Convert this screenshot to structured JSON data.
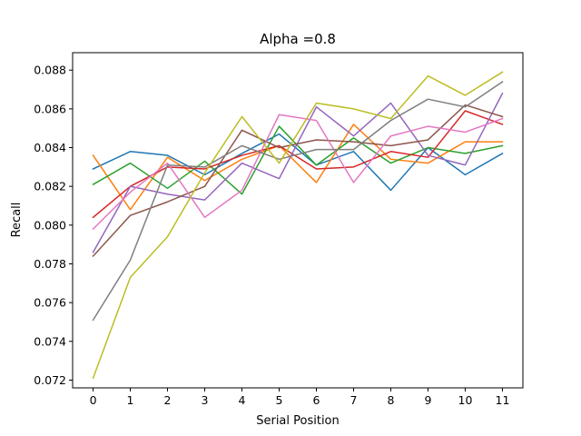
{
  "chart_data": {
    "type": "line",
    "title": "Alpha =0.8",
    "xlabel": "Serial Position",
    "ylabel": "Recall",
    "x": [
      0,
      1,
      2,
      3,
      4,
      5,
      6,
      7,
      8,
      9,
      10,
      11
    ],
    "xlim": [
      -0.55,
      11.55
    ],
    "ylim": [
      0.0716,
      0.0889
    ],
    "yticks": [
      0.072,
      0.074,
      0.076,
      0.078,
      0.08,
      0.082,
      0.084,
      0.086,
      0.088
    ],
    "ytick_labels": [
      "0.072",
      "0.074",
      "0.076",
      "0.078",
      "0.080",
      "0.082",
      "0.084",
      "0.086",
      "0.088"
    ],
    "xtick_labels": [
      "0",
      "1",
      "2",
      "3",
      "4",
      "5",
      "6",
      "7",
      "8",
      "9",
      "10",
      "11"
    ],
    "grid": false,
    "legend": "none",
    "series": [
      {
        "color": "#1f77b4",
        "values": [
          0.0829,
          0.0838,
          0.0836,
          0.0826,
          0.0837,
          0.0847,
          0.0831,
          0.0838,
          0.0818,
          0.084,
          0.0826,
          0.0837
        ]
      },
      {
        "color": "#ff7f0e",
        "values": [
          0.0836,
          0.0808,
          0.0835,
          0.0823,
          0.0834,
          0.0841,
          0.0822,
          0.0852,
          0.0834,
          0.0832,
          0.0843,
          0.0843
        ]
      },
      {
        "color": "#2ca02c",
        "values": [
          0.0821,
          0.0832,
          0.0819,
          0.0833,
          0.0816,
          0.0851,
          0.0831,
          0.0845,
          0.0832,
          0.084,
          0.0837,
          0.0841
        ]
      },
      {
        "color": "#d62728",
        "values": [
          0.0804,
          0.082,
          0.083,
          0.0829,
          0.0836,
          0.0841,
          0.0829,
          0.083,
          0.0838,
          0.0835,
          0.0859,
          0.0852
        ]
      },
      {
        "color": "#9467bd",
        "values": [
          0.0786,
          0.082,
          0.0816,
          0.0813,
          0.0832,
          0.0824,
          0.0861,
          0.0846,
          0.0863,
          0.0836,
          0.0831,
          0.0868
        ]
      },
      {
        "color": "#8c564b",
        "values": [
          0.0784,
          0.0805,
          0.0812,
          0.082,
          0.0849,
          0.084,
          0.0844,
          0.0843,
          0.0841,
          0.0844,
          0.0862,
          0.0856
        ]
      },
      {
        "color": "#e377c2",
        "values": [
          0.0798,
          0.0817,
          0.0832,
          0.0804,
          0.0818,
          0.0857,
          0.0854,
          0.0822,
          0.0846,
          0.0851,
          0.0848,
          0.0855
        ]
      },
      {
        "color": "#7f7f7f",
        "values": [
          0.0751,
          0.0782,
          0.0831,
          0.083,
          0.0841,
          0.0834,
          0.0839,
          0.0839,
          0.0854,
          0.0865,
          0.0861,
          0.0874
        ]
      },
      {
        "color": "#bcbd22",
        "values": [
          0.0721,
          0.0773,
          0.0794,
          0.0827,
          0.0856,
          0.0832,
          0.0863,
          0.086,
          0.0855,
          0.0877,
          0.0867,
          0.0879
        ]
      }
    ]
  }
}
